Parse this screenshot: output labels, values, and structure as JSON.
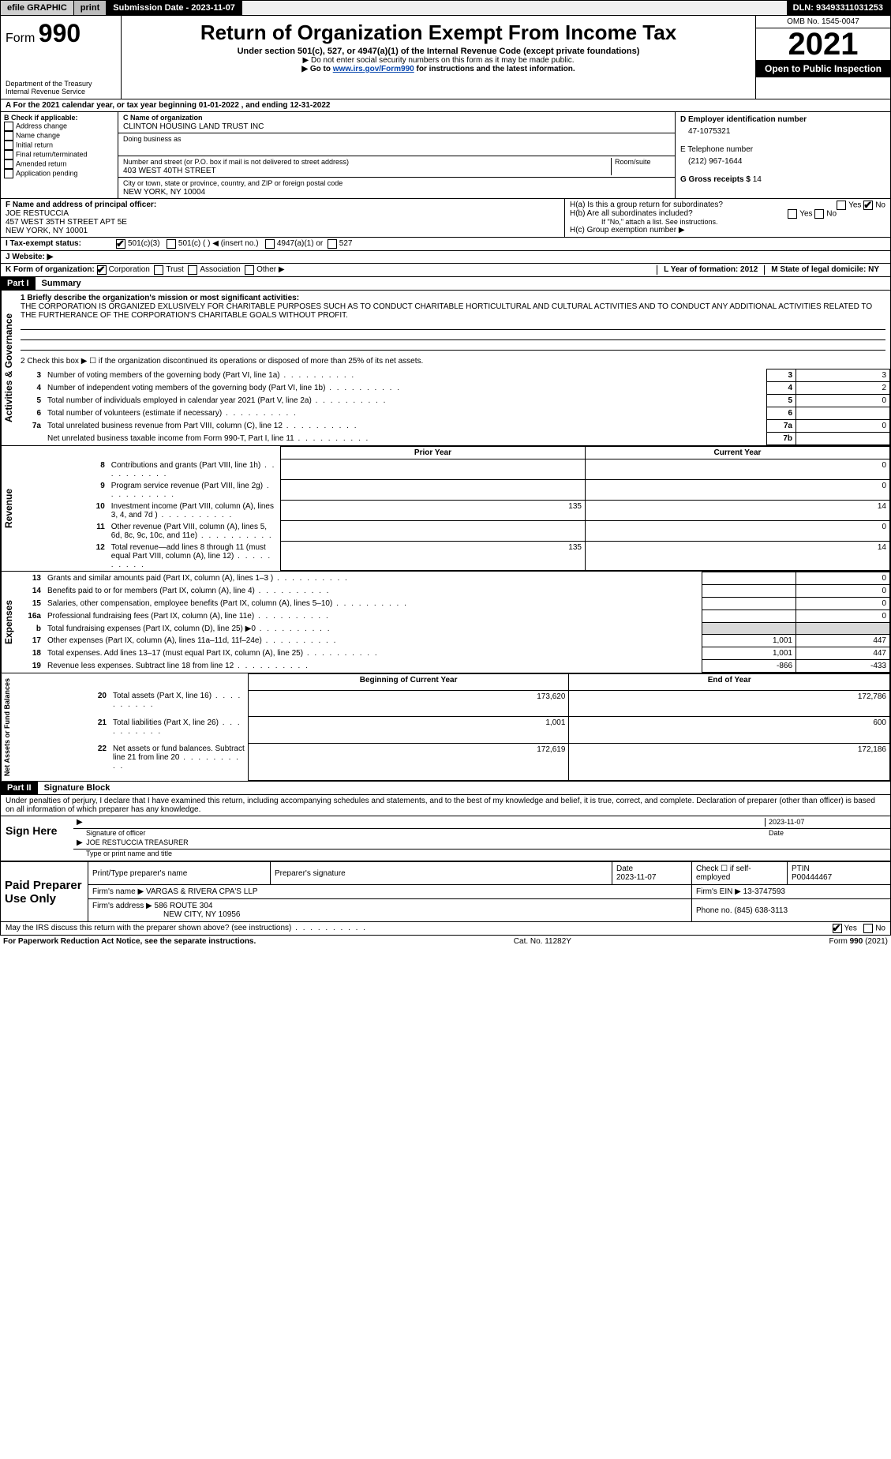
{
  "topbar": {
    "efile": "efile GRAPHIC",
    "print": "print",
    "submission": "Submission Date - 2023-11-07",
    "dln": "DLN: 93493311031253"
  },
  "header": {
    "form_prefix": "Form",
    "form_no": "990",
    "title": "Return of Organization Exempt From Income Tax",
    "subtitle": "Under section 501(c), 527, or 4947(a)(1) of the Internal Revenue Code (except private foundations)",
    "note1": "▶ Do not enter social security numbers on this form as it may be made public.",
    "note2_pre": "▶ Go to ",
    "note2_link": "www.irs.gov/Form990",
    "note2_post": " for instructions and the latest information.",
    "dept": "Department of the Treasury",
    "irs": "Internal Revenue Service",
    "omb": "OMB No. 1545-0047",
    "year": "2021",
    "open": "Open to Public Inspection"
  },
  "row_a": "A For the 2021 calendar year, or tax year beginning 01-01-2022    , and ending 12-31-2022",
  "col_b": {
    "label": "B Check if applicable:",
    "items": [
      "Address change",
      "Name change",
      "Initial return",
      "Final return/terminated",
      "Amended return",
      "Application pending"
    ]
  },
  "col_c": {
    "name_label": "C Name of organization",
    "name": "CLINTON HOUSING LAND TRUST INC",
    "dba_label": "Doing business as",
    "addr_label": "Number and street (or P.O. box if mail is not delivered to street address)",
    "room_label": "Room/suite",
    "addr": "403 WEST 40TH STREET",
    "city_label": "City or town, state or province, country, and ZIP or foreign postal code",
    "city": "NEW YORK, NY  10004"
  },
  "col_d": {
    "ein_label": "D Employer identification number",
    "ein": "47-1075321",
    "tel_label": "E Telephone number",
    "tel": "(212) 967-1644",
    "gross_label": "G Gross receipts $",
    "gross": "14"
  },
  "block_fh": {
    "f_label": "F  Name and address of principal officer:",
    "f_name": "JOE RESTUCCIA",
    "f_addr1": "457 WEST 35TH STREET APT 5E",
    "f_addr2": "NEW YORK, NY  10001",
    "ha": "H(a)  Is this a group return for subordinates?",
    "hb": "H(b)  Are all subordinates included?",
    "hb_note": "If \"No,\" attach a list. See instructions.",
    "hc": "H(c)  Group exemption number ▶",
    "yes": "Yes",
    "no": "No"
  },
  "row_i": {
    "label": "I    Tax-exempt status:",
    "o1": "501(c)(3)",
    "o2": "501(c) (   ) ◀ (insert no.)",
    "o3": "4947(a)(1) or",
    "o4": "527"
  },
  "row_j": "J    Website: ▶",
  "row_k": {
    "label": "K Form of organization:",
    "corp": "Corporation",
    "trust": "Trust",
    "assoc": "Association",
    "other": "Other ▶",
    "l": "L Year of formation: 2012",
    "m": "M State of legal domicile: NY"
  },
  "part1": {
    "hdr": "Part I",
    "title": "Summary",
    "l1_label": "1  Briefly describe the organization's mission or most significant activities:",
    "mission": "THE CORPORATION IS ORGANIZED EXLUSIVELY FOR CHARITABLE PURPOSES SUCH AS TO CONDUCT CHARITABLE HORTICULTURAL AND CULTURAL ACTIVITIES AND TO CONDUCT ANY ADDITIONAL ACTIVITIES RELATED TO THE FURTHERANCE OF THE CORPORATION'S CHARITABLE GOALS WITHOUT PROFIT.",
    "l2": "2   Check this box ▶ ☐  if the organization discontinued its operations or disposed of more than 25% of its net assets.",
    "rows_gov": [
      {
        "n": "3",
        "t": "Number of voting members of the governing body (Part VI, line 1a)",
        "box": "3",
        "v": "3"
      },
      {
        "n": "4",
        "t": "Number of independent voting members of the governing body (Part VI, line 1b)",
        "box": "4",
        "v": "2"
      },
      {
        "n": "5",
        "t": "Total number of individuals employed in calendar year 2021 (Part V, line 2a)",
        "box": "5",
        "v": "0"
      },
      {
        "n": "6",
        "t": "Total number of volunteers (estimate if necessary)",
        "box": "6",
        "v": ""
      },
      {
        "n": "7a",
        "t": "Total unrelated business revenue from Part VIII, column (C), line 12",
        "box": "7a",
        "v": "0"
      },
      {
        "n": "",
        "t": "Net unrelated business taxable income from Form 990-T, Part I, line 11",
        "box": "7b",
        "v": ""
      }
    ],
    "col_prior": "Prior Year",
    "col_curr": "Current Year",
    "rows_rev": [
      {
        "n": "8",
        "t": "Contributions and grants (Part VIII, line 1h)",
        "p": "",
        "c": "0"
      },
      {
        "n": "9",
        "t": "Program service revenue (Part VIII, line 2g)",
        "p": "",
        "c": "0"
      },
      {
        "n": "10",
        "t": "Investment income (Part VIII, column (A), lines 3, 4, and 7d )",
        "p": "135",
        "c": "14"
      },
      {
        "n": "11",
        "t": "Other revenue (Part VIII, column (A), lines 5, 6d, 8c, 9c, 10c, and 11e)",
        "p": "",
        "c": "0"
      },
      {
        "n": "12",
        "t": "Total revenue—add lines 8 through 11 (must equal Part VIII, column (A), line 12)",
        "p": "135",
        "c": "14"
      }
    ],
    "rows_exp": [
      {
        "n": "13",
        "t": "Grants and similar amounts paid (Part IX, column (A), lines 1–3 )",
        "p": "",
        "c": "0"
      },
      {
        "n": "14",
        "t": "Benefits paid to or for members (Part IX, column (A), line 4)",
        "p": "",
        "c": "0"
      },
      {
        "n": "15",
        "t": "Salaries, other compensation, employee benefits (Part IX, column (A), lines 5–10)",
        "p": "",
        "c": "0"
      },
      {
        "n": "16a",
        "t": "Professional fundraising fees (Part IX, column (A), line 11e)",
        "p": "",
        "c": "0"
      },
      {
        "n": "b",
        "t": "Total fundraising expenses (Part IX, column (D), line 25) ▶0",
        "p": "SHADE",
        "c": "SHADE"
      },
      {
        "n": "17",
        "t": "Other expenses (Part IX, column (A), lines 11a–11d, 11f–24e)",
        "p": "1,001",
        "c": "447"
      },
      {
        "n": "18",
        "t": "Total expenses. Add lines 13–17 (must equal Part IX, column (A), line 25)",
        "p": "1,001",
        "c": "447"
      },
      {
        "n": "19",
        "t": "Revenue less expenses. Subtract line 18 from line 12",
        "p": "-866",
        "c": "-433"
      }
    ],
    "col_beg": "Beginning of Current Year",
    "col_end": "End of Year",
    "rows_net": [
      {
        "n": "20",
        "t": "Total assets (Part X, line 16)",
        "p": "173,620",
        "c": "172,786"
      },
      {
        "n": "21",
        "t": "Total liabilities (Part X, line 26)",
        "p": "1,001",
        "c": "600"
      },
      {
        "n": "22",
        "t": "Net assets or fund balances. Subtract line 21 from line 20",
        "p": "172,619",
        "c": "172,186"
      }
    ],
    "tab_gov": "Activities & Governance",
    "tab_rev": "Revenue",
    "tab_exp": "Expenses",
    "tab_net": "Net Assets or Fund Balances"
  },
  "part2": {
    "hdr": "Part II",
    "title": "Signature Block",
    "penalty": "Under penalties of perjury, I declare that I have examined this return, including accompanying schedules and statements, and to the best of my knowledge and belief, it is true, correct, and complete. Declaration of preparer (other than officer) is based on all information of which preparer has any knowledge.",
    "sign_here": "Sign Here",
    "sig_date": "2023-11-07",
    "sig_of": "Signature of officer",
    "date": "Date",
    "officer": "JOE RESTUCCIA  TREASURER",
    "type_name": "Type or print name and title",
    "paid": "Paid Preparer Use Only",
    "prep_name_h": "Print/Type preparer's name",
    "prep_sig_h": "Preparer's signature",
    "prep_date": "Date\n2023-11-07",
    "check_if": "Check ☐ if self-employed",
    "ptin_h": "PTIN",
    "ptin": "P00444467",
    "firm_name_l": "Firm's name    ▶",
    "firm_name": "VARGAS & RIVERA CPA'S LLP",
    "firm_ein_l": "Firm's EIN ▶",
    "firm_ein": "13-3747593",
    "firm_addr_l": "Firm's address ▶",
    "firm_addr1": "586 ROUTE 304",
    "firm_addr2": "NEW CITY, NY  10956",
    "phone_l": "Phone no.",
    "phone": "(845) 638-3113",
    "discuss": "May the IRS discuss this return with the preparer shown above? (see instructions)",
    "yes": "Yes",
    "no": "No"
  },
  "footer": {
    "left": "For Paperwork Reduction Act Notice, see the separate instructions.",
    "mid": "Cat. No. 11282Y",
    "right": "Form 990 (2021)"
  }
}
